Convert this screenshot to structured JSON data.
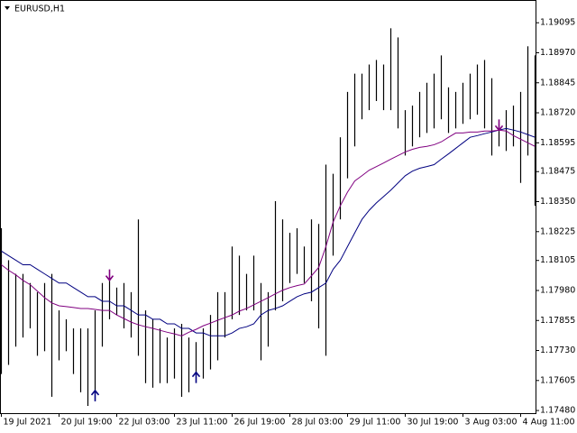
{
  "chart_data": {
    "type": "ohlc",
    "title": "EURUSD,H1",
    "categories": [
      "19 Jul 2021",
      null,
      null,
      null,
      null,
      null,
      null,
      null,
      "20 Jul 19:00",
      null,
      null,
      null,
      null,
      null,
      null,
      null,
      "22 Jul 03:00",
      null,
      null,
      null,
      null,
      null,
      null,
      null,
      "23 Jul 11:00",
      null,
      null,
      null,
      null,
      null,
      null,
      null,
      "26 Jul 19:00",
      null,
      null,
      null,
      null,
      null,
      null,
      null,
      "28 Jul 03:00",
      null,
      null,
      null,
      null,
      null,
      null,
      null,
      "29 Jul 11:00",
      null,
      null,
      null,
      null,
      null,
      null,
      null,
      "30 Jul 19:00",
      null,
      null,
      null,
      null,
      null,
      null,
      null,
      "3 Aug 03:00",
      null,
      null,
      null,
      null,
      null,
      null,
      null,
      "4 Aug 11:00",
      null,
      null
    ],
    "high": [
      1.18239,
      1.18106,
      1.18049,
      1.18049,
      1.18011,
      1.17973,
      1.18011,
      1.18049,
      1.17897,
      1.1786,
      1.17822,
      1.17822,
      1.17822,
      1.17897,
      1.18011,
      1.1803,
      1.17992,
      1.18011,
      1.17973,
      1.18276,
      1.17897,
      1.1786,
      1.17822,
      1.17784,
      1.17822,
      1.17841,
      1.17784,
      1.17765,
      1.17822,
      1.17878,
      1.17973,
      1.17973,
      1.18163,
      1.18125,
      1.18049,
      1.18125,
      1.18011,
      1.17973,
      1.18352,
      1.18276,
      1.1822,
      1.18239,
      1.18163,
      1.18276,
      1.18257,
      1.18504,
      1.18466,
      1.18618,
      1.18807,
      1.18883,
      1.18883,
      1.18921,
      1.1894,
      1.18921,
      1.19072,
      1.19034,
      1.18731,
      1.1875,
      1.18807,
      1.18845,
      1.18883,
      1.18959,
      1.18826,
      1.18807,
      1.18845,
      1.18883,
      1.18921,
      1.1894,
      1.18864,
      1.18674,
      1.18731,
      1.1875,
      1.18807,
      1.18997,
      1.18959
    ],
    "low": [
      1.17632,
      1.1767,
      1.17746,
      1.17784,
      1.17822,
      1.17708,
      1.17727,
      1.17537,
      1.17689,
      1.17727,
      1.17632,
      1.17556,
      1.17499,
      1.17556,
      1.17746,
      1.1786,
      1.17878,
      1.17822,
      1.17784,
      1.17708,
      1.17594,
      1.17575,
      1.17594,
      1.17594,
      1.17613,
      1.17537,
      1.17556,
      1.17632,
      1.17613,
      1.17651,
      1.17689,
      1.17784,
      1.1786,
      1.17878,
      1.17897,
      1.17897,
      1.17689,
      1.17746,
      1.17897,
      1.17935,
      1.18011,
      1.18049,
      1.18011,
      1.17935,
      1.17822,
      1.17708,
      1.18125,
      1.18276,
      1.18447,
      1.1858,
      1.18693,
      1.18731,
      1.18769,
      1.18731,
      1.18731,
      1.18655,
      1.18542,
      1.1858,
      1.18618,
      1.18636,
      1.18655,
      1.18693,
      1.18636,
      1.18655,
      1.18674,
      1.18693,
      1.18712,
      1.18655,
      1.18542,
      1.1858,
      1.18561,
      1.1858,
      1.18428,
      1.18542,
      1.18333
    ],
    "bar_color": "#000000",
    "moving_averages": [
      {
        "color": "#000080",
        "values": [
          1.18144,
          1.18125,
          1.18106,
          1.18087,
          1.18087,
          1.18068,
          1.18049,
          1.1803,
          1.18011,
          1.18011,
          1.17992,
          1.17973,
          1.17954,
          1.17954,
          1.17935,
          1.17935,
          1.17916,
          1.17916,
          1.17897,
          1.17878,
          1.17878,
          1.1786,
          1.1786,
          1.17841,
          1.17841,
          1.17822,
          1.17822,
          1.17803,
          1.17803,
          1.17791,
          1.17791,
          1.17791,
          1.17803,
          1.17822,
          1.17829,
          1.17841,
          1.17878,
          1.17897,
          1.17905,
          1.17916,
          1.17935,
          1.17954,
          1.17966,
          1.17973,
          1.17992,
          1.18011,
          1.18068,
          1.18106,
          1.18163,
          1.1822,
          1.18276,
          1.18314,
          1.18345,
          1.18371,
          1.18398,
          1.18428,
          1.18458,
          1.18477,
          1.18489,
          1.18496,
          1.18504,
          1.18527,
          1.18549,
          1.18572,
          1.18595,
          1.18618,
          1.18625,
          1.18633,
          1.1864,
          1.18648,
          1.18655,
          1.18648,
          1.1864,
          1.18629,
          1.18618
        ]
      },
      {
        "color": "#800080",
        "values": [
          1.18087,
          1.18064,
          1.18045,
          1.18022,
          1.18004,
          1.17977,
          1.1795,
          1.17928,
          1.17916,
          1.17913,
          1.17909,
          1.17905,
          1.17905,
          1.17901,
          1.17897,
          1.17897,
          1.17878,
          1.17863,
          1.17848,
          1.17837,
          1.17829,
          1.17822,
          1.17814,
          1.17806,
          1.17799,
          1.17791,
          1.17806,
          1.17818,
          1.17833,
          1.17844,
          1.17856,
          1.17867,
          1.17878,
          1.17894,
          1.17905,
          1.1792,
          1.17935,
          1.1795,
          1.17966,
          1.17981,
          1.17992,
          1.18,
          1.18007,
          1.18041,
          1.18076,
          1.18163,
          1.18265,
          1.18333,
          1.1839,
          1.18436,
          1.18458,
          1.18481,
          1.18496,
          1.18511,
          1.18527,
          1.18542,
          1.18557,
          1.18568,
          1.18576,
          1.1858,
          1.18587,
          1.18599,
          1.18618,
          1.18636,
          1.18636,
          1.1864,
          1.1864,
          1.18644,
          1.18644,
          1.18648,
          1.18644,
          1.18625,
          1.1861,
          1.18595,
          1.1858
        ]
      }
    ],
    "markers": [
      {
        "x": 13,
        "y": 1.17556,
        "direction": "up",
        "color": "#000080"
      },
      {
        "x": 27,
        "y": 1.17632,
        "direction": "up",
        "color": "#000080"
      },
      {
        "x": 15,
        "y": 1.1803,
        "direction": "down",
        "color": "#800080"
      },
      {
        "x": 69,
        "y": 1.18655,
        "direction": "down",
        "color": "#800080"
      }
    ],
    "ylim": [
      1.17469,
      1.19186
    ],
    "yticks": [
      1.19095,
      {
        "value": 1.1897,
        "label": "1.18970"
      },
      1.18845,
      {
        "value": 1.1872,
        "label": "1.18720"
      },
      1.18595,
      1.18475,
      {
        "value": 1.1835,
        "label": "1.18350"
      },
      1.18225,
      1.18105,
      {
        "value": 1.1798,
        "label": "1.17980"
      },
      1.17855,
      {
        "value": 1.1773,
        "label": "1.17730"
      },
      1.17605,
      {
        "value": 1.1748,
        "label": "1.17480"
      }
    ]
  }
}
